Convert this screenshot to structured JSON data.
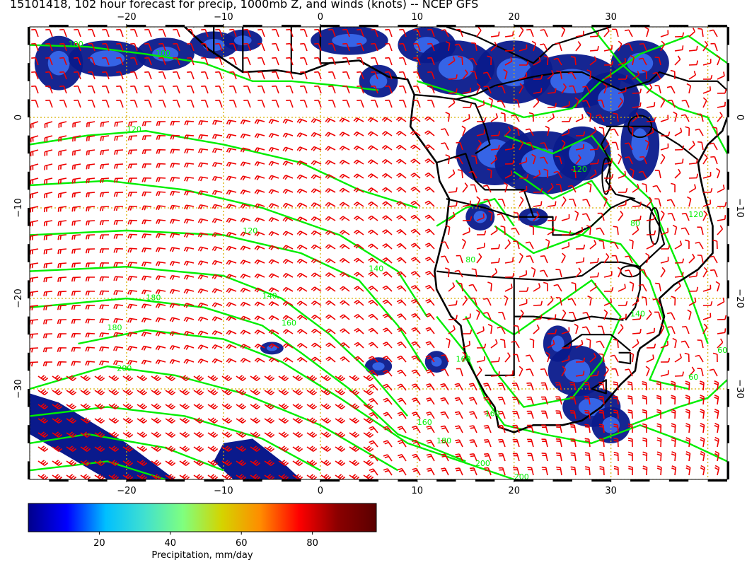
{
  "title": "15101418, 102 hour forecast for precip, 1000mb Z, and winds (knots) -- NCEP GFS",
  "map": {
    "lon_range": [
      -30,
      42
    ],
    "lat_range": [
      -40,
      10
    ],
    "lon_ticks": [
      -20,
      -10,
      0,
      10,
      20,
      30
    ],
    "lat_ticks": [
      -30,
      -20,
      -10,
      0
    ],
    "lon_tick_labels": [
      "−20",
      "−10",
      "0",
      "10",
      "20",
      "30"
    ],
    "lat_tick_labels": [
      "−30",
      "−20",
      "−10",
      "0"
    ],
    "colors": {
      "coastline": "#000000",
      "contour": "#00ee00",
      "wind_barb": "#ee0000",
      "gridline": "#d9b000",
      "precip_low": "#0a1a8c",
      "precip_mid": "#3a6cf0"
    },
    "contour_labels": [
      "100",
      "100",
      "120",
      "120",
      "140",
      "160",
      "180",
      "180",
      "200",
      "200",
      "160",
      "180",
      "200",
      "160",
      "80",
      "80",
      "120",
      "140",
      "160",
      "60",
      "120",
      "140",
      "60"
    ]
  },
  "colorbar": {
    "min": 0,
    "max": 98,
    "tick_values": [
      20,
      40,
      60,
      80
    ],
    "tick_labels": [
      "20",
      "40",
      "60",
      "80"
    ],
    "label": "Precipitation, mm/day",
    "colors": [
      "#00008b",
      "#0000ff",
      "#00bfff",
      "#40e0d0",
      "#7fff7f",
      "#d4d400",
      "#ff8c00",
      "#ff0000",
      "#8b0000",
      "#5a0000"
    ]
  }
}
